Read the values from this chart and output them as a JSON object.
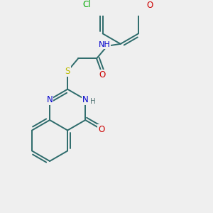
{
  "bg_color": "#efefef",
  "bond_color": "#2d6b6b",
  "atom_colors": {
    "N": "#0000cc",
    "O": "#cc0000",
    "S": "#bbbb00",
    "Cl": "#00aa00",
    "H": "#557777"
  },
  "font_size": 8.5,
  "lw": 1.4
}
